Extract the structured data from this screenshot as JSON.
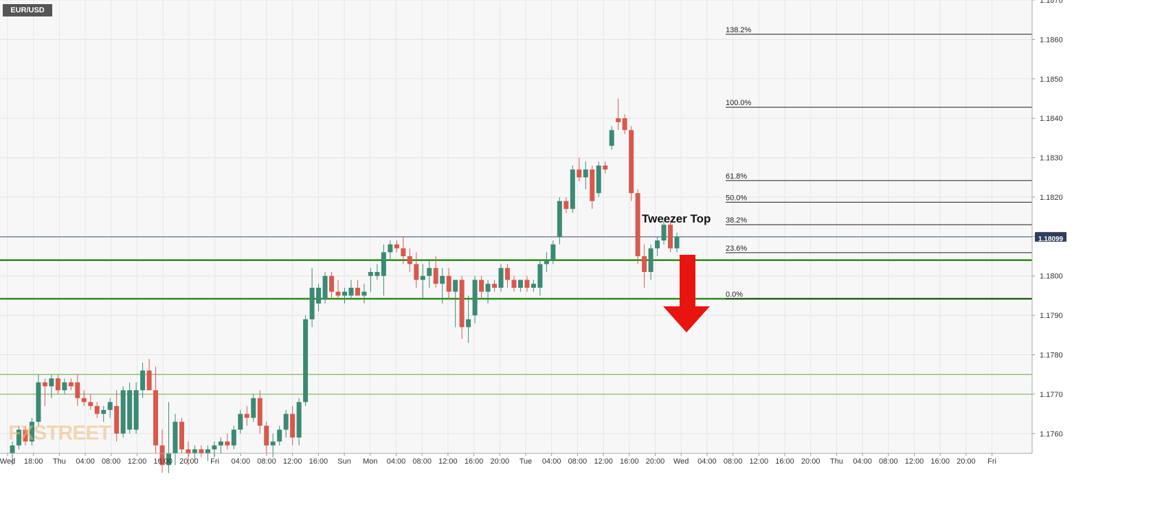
{
  "symbol_badge": "EUR/USD",
  "watermark": "FXSTREET",
  "annotation": "Tweezer Top",
  "chart_data": {
    "type": "candlestick",
    "title": "EUR/USD",
    "ylim": [
      1.1755,
      1.187
    ],
    "y_ticks": [
      "1.1760",
      "1.1770",
      "1.1780",
      "1.1790",
      "1.1800",
      "1.1810",
      "1.1820",
      "1.1830",
      "1.1840",
      "1.1850",
      "1.1860",
      "1.1870"
    ],
    "x_ticks": [
      "Wed",
      "18:00",
      "Thu",
      "04:00",
      "08:00",
      "12:00",
      "16:00",
      "20:00",
      "Fri",
      "04:00",
      "08:00",
      "12:00",
      "16:00",
      "Sun",
      "Mon",
      "04:00",
      "08:00",
      "12:00",
      "16:00",
      "20:00",
      "Tue",
      "04:00",
      "08:00",
      "12:00",
      "16:00",
      "20:00",
      "Wed",
      "04:00",
      "08:00",
      "12:00",
      "16:00",
      "20:00",
      "Thu",
      "04:00",
      "08:00",
      "12:00",
      "16:00",
      "20:00",
      "Fri"
    ],
    "current_price": "1.18099",
    "current_price_value": 1.18099,
    "horizontal_levels": [
      1.1804,
      1.17942,
      1.1775,
      1.177
    ],
    "fibonacci": [
      {
        "label": "138.2%",
        "price": 1.18613
      },
      {
        "label": "100.0%",
        "price": 1.18428
      },
      {
        "label": "61.8%",
        "price": 1.18242
      },
      {
        "label": "50.0%",
        "price": 1.18187
      },
      {
        "label": "38.2%",
        "price": 1.1813
      },
      {
        "label": "23.6%",
        "price": 1.18059
      },
      {
        "label": "0.0%",
        "price": 1.17942
      }
    ],
    "candles": [
      {
        "o": 1.1755,
        "h": 1.1758,
        "l": 1.1752,
        "c": 1.1757
      },
      {
        "o": 1.1757,
        "h": 1.1762,
        "l": 1.1756,
        "c": 1.1761
      },
      {
        "o": 1.1761,
        "h": 1.1762,
        "l": 1.1757,
        "c": 1.1758
      },
      {
        "o": 1.1758,
        "h": 1.1764,
        "l": 1.1757,
        "c": 1.1763
      },
      {
        "o": 1.1763,
        "h": 1.1775,
        "l": 1.1762,
        "c": 1.1773
      },
      {
        "o": 1.1773,
        "h": 1.1774,
        "l": 1.1767,
        "c": 1.1772
      },
      {
        "o": 1.1772,
        "h": 1.1775,
        "l": 1.1769,
        "c": 1.1774
      },
      {
        "o": 1.1774,
        "h": 1.1775,
        "l": 1.177,
        "c": 1.1771
      },
      {
        "o": 1.1771,
        "h": 1.1774,
        "l": 1.177,
        "c": 1.1773
      },
      {
        "o": 1.1773,
        "h": 1.1774,
        "l": 1.1771,
        "c": 1.1772
      },
      {
        "o": 1.1773,
        "h": 1.1775,
        "l": 1.1767,
        "c": 1.1769
      },
      {
        "o": 1.1769,
        "h": 1.1771,
        "l": 1.1767,
        "c": 1.1768
      },
      {
        "o": 1.1768,
        "h": 1.177,
        "l": 1.1766,
        "c": 1.1767
      },
      {
        "o": 1.1767,
        "h": 1.1768,
        "l": 1.1764,
        "c": 1.1765
      },
      {
        "o": 1.1765,
        "h": 1.1767,
        "l": 1.1763,
        "c": 1.1766
      },
      {
        "o": 1.1766,
        "h": 1.1769,
        "l": 1.1764,
        "c": 1.1768
      },
      {
        "o": 1.1767,
        "h": 1.1771,
        "l": 1.1758,
        "c": 1.176
      },
      {
        "o": 1.176,
        "h": 1.1772,
        "l": 1.1759,
        "c": 1.1771
      },
      {
        "o": 1.1761,
        "h": 1.1773,
        "l": 1.176,
        "c": 1.1771
      },
      {
        "o": 1.1761,
        "h": 1.1773,
        "l": 1.176,
        "c": 1.1771
      },
      {
        "o": 1.1771,
        "h": 1.1778,
        "l": 1.1769,
        "c": 1.1776
      },
      {
        "o": 1.1776,
        "h": 1.1779,
        "l": 1.1771,
        "c": 1.1771
      },
      {
        "o": 1.1771,
        "h": 1.1777,
        "l": 1.1755,
        "c": 1.1757
      },
      {
        "o": 1.1757,
        "h": 1.1761,
        "l": 1.175,
        "c": 1.1752
      },
      {
        "o": 1.1752,
        "h": 1.1768,
        "l": 1.175,
        "c": 1.1755
      },
      {
        "o": 1.1755,
        "h": 1.1765,
        "l": 1.1752,
        "c": 1.1763
      },
      {
        "o": 1.1763,
        "h": 1.1764,
        "l": 1.1755,
        "c": 1.1756
      },
      {
        "o": 1.1756,
        "h": 1.1758,
        "l": 1.1752,
        "c": 1.1755
      },
      {
        "o": 1.1755,
        "h": 1.1757,
        "l": 1.1753,
        "c": 1.1756
      },
      {
        "o": 1.1756,
        "h": 1.1757,
        "l": 1.1754,
        "c": 1.1755
      },
      {
        "o": 1.1755,
        "h": 1.1757,
        "l": 1.1753,
        "c": 1.1756
      },
      {
        "o": 1.1756,
        "h": 1.1758,
        "l": 1.1754,
        "c": 1.1757
      },
      {
        "o": 1.1757,
        "h": 1.1759,
        "l": 1.1755,
        "c": 1.1758
      },
      {
        "o": 1.1758,
        "h": 1.176,
        "l": 1.1756,
        "c": 1.1757
      },
      {
        "o": 1.1757,
        "h": 1.1762,
        "l": 1.1756,
        "c": 1.1761
      },
      {
        "o": 1.1761,
        "h": 1.1766,
        "l": 1.176,
        "c": 1.1765
      },
      {
        "o": 1.1765,
        "h": 1.1767,
        "l": 1.1762,
        "c": 1.1764
      },
      {
        "o": 1.1764,
        "h": 1.177,
        "l": 1.1763,
        "c": 1.1769
      },
      {
        "o": 1.1769,
        "h": 1.1771,
        "l": 1.176,
        "c": 1.1762
      },
      {
        "o": 1.1762,
        "h": 1.1763,
        "l": 1.1755,
        "c": 1.1757
      },
      {
        "o": 1.1757,
        "h": 1.176,
        "l": 1.1754,
        "c": 1.1758
      },
      {
        "o": 1.1758,
        "h": 1.1762,
        "l": 1.1757,
        "c": 1.1761
      },
      {
        "o": 1.1761,
        "h": 1.1766,
        "l": 1.1759,
        "c": 1.1765
      },
      {
        "o": 1.1765,
        "h": 1.1767,
        "l": 1.1757,
        "c": 1.1759
      },
      {
        "o": 1.1759,
        "h": 1.1769,
        "l": 1.1757,
        "c": 1.1768
      },
      {
        "o": 1.1768,
        "h": 1.179,
        "l": 1.1767,
        "c": 1.1789
      },
      {
        "o": 1.1789,
        "h": 1.1802,
        "l": 1.1787,
        "c": 1.1797
      },
      {
        "o": 1.1793,
        "h": 1.1798,
        "l": 1.1791,
        "c": 1.1797
      },
      {
        "o": 1.1794,
        "h": 1.1801,
        "l": 1.1793,
        "c": 1.18
      },
      {
        "o": 1.18,
        "h": 1.1801,
        "l": 1.1794,
        "c": 1.1796
      },
      {
        "o": 1.1796,
        "h": 1.1799,
        "l": 1.1794,
        "c": 1.1795
      },
      {
        "o": 1.1795,
        "h": 1.1797,
        "l": 1.1793,
        "c": 1.1796
      },
      {
        "o": 1.1795,
        "h": 1.1799,
        "l": 1.1794,
        "c": 1.1797
      },
      {
        "o": 1.1797,
        "h": 1.1799,
        "l": 1.1795,
        "c": 1.1795
      },
      {
        "o": 1.1795,
        "h": 1.1798,
        "l": 1.1793,
        "c": 1.1796
      },
      {
        "o": 1.18,
        "h": 1.1802,
        "l": 1.1796,
        "c": 1.1801
      },
      {
        "o": 1.18,
        "h": 1.1803,
        "l": 1.1799,
        "c": 1.1801
      },
      {
        "o": 1.18,
        "h": 1.1808,
        "l": 1.1795,
        "c": 1.1806
      },
      {
        "o": 1.1806,
        "h": 1.1809,
        "l": 1.1804,
        "c": 1.1808
      },
      {
        "o": 1.1808,
        "h": 1.1809,
        "l": 1.1806,
        "c": 1.1807
      },
      {
        "o": 1.1807,
        "h": 1.181,
        "l": 1.1803,
        "c": 1.1805
      },
      {
        "o": 1.1805,
        "h": 1.1807,
        "l": 1.1801,
        "c": 1.1803
      },
      {
        "o": 1.1803,
        "h": 1.1806,
        "l": 1.1797,
        "c": 1.1799
      },
      {
        "o": 1.1799,
        "h": 1.1803,
        "l": 1.1794,
        "c": 1.18
      },
      {
        "o": 1.18,
        "h": 1.1804,
        "l": 1.1797,
        "c": 1.1802
      },
      {
        "o": 1.1802,
        "h": 1.1805,
        "l": 1.1797,
        "c": 1.1798
      },
      {
        "o": 1.1798,
        "h": 1.1802,
        "l": 1.1793,
        "c": 1.18
      },
      {
        "o": 1.18,
        "h": 1.1802,
        "l": 1.1794,
        "c": 1.1796
      },
      {
        "o": 1.1796,
        "h": 1.1799,
        "l": 1.1787,
        "c": 1.1799
      },
      {
        "o": 1.1799,
        "h": 1.18,
        "l": 1.1784,
        "c": 1.1787
      },
      {
        "o": 1.1787,
        "h": 1.1795,
        "l": 1.1783,
        "c": 1.1789
      },
      {
        "o": 1.179,
        "h": 1.18,
        "l": 1.1788,
        "c": 1.1799
      },
      {
        "o": 1.1799,
        "h": 1.18,
        "l": 1.1794,
        "c": 1.1796
      },
      {
        "o": 1.1796,
        "h": 1.1799,
        "l": 1.1793,
        "c": 1.1798
      },
      {
        "o": 1.1798,
        "h": 1.1799,
        "l": 1.1796,
        "c": 1.1797
      },
      {
        "o": 1.1797,
        "h": 1.1803,
        "l": 1.1796,
        "c": 1.1802
      },
      {
        "o": 1.1802,
        "h": 1.1803,
        "l": 1.1797,
        "c": 1.1799
      },
      {
        "o": 1.1799,
        "h": 1.18,
        "l": 1.1796,
        "c": 1.1797
      },
      {
        "o": 1.1797,
        "h": 1.1799,
        "l": 1.1796,
        "c": 1.1799
      },
      {
        "o": 1.1799,
        "h": 1.18,
        "l": 1.1796,
        "c": 1.1797
      },
      {
        "o": 1.1797,
        "h": 1.1799,
        "l": 1.1796,
        "c": 1.1798
      },
      {
        "o": 1.1797,
        "h": 1.1804,
        "l": 1.1795,
        "c": 1.1803
      },
      {
        "o": 1.1803,
        "h": 1.1806,
        "l": 1.1801,
        "c": 1.1804
      },
      {
        "o": 1.1804,
        "h": 1.1809,
        "l": 1.1803,
        "c": 1.1808
      },
      {
        "o": 1.181,
        "h": 1.182,
        "l": 1.1808,
        "c": 1.1819
      },
      {
        "o": 1.1819,
        "h": 1.182,
        "l": 1.1816,
        "c": 1.1817
      },
      {
        "o": 1.1817,
        "h": 1.1828,
        "l": 1.1816,
        "c": 1.1827
      },
      {
        "o": 1.1827,
        "h": 1.183,
        "l": 1.1824,
        "c": 1.1825
      },
      {
        "o": 1.1825,
        "h": 1.1829,
        "l": 1.1822,
        "c": 1.1827
      },
      {
        "o": 1.1827,
        "h": 1.1828,
        "l": 1.1817,
        "c": 1.1819
      },
      {
        "o": 1.1821,
        "h": 1.1829,
        "l": 1.182,
        "c": 1.1828
      },
      {
        "o": 1.1828,
        "h": 1.1829,
        "l": 1.1826,
        "c": 1.1827
      },
      {
        "o": 1.1833,
        "h": 1.1838,
        "l": 1.1832,
        "c": 1.1837
      },
      {
        "o": 1.184,
        "h": 1.1845,
        "l": 1.1837,
        "c": 1.1839
      },
      {
        "o": 1.184,
        "h": 1.1841,
        "l": 1.1836,
        "c": 1.1837
      },
      {
        "o": 1.1837,
        "h": 1.1838,
        "l": 1.1819,
        "c": 1.1821
      },
      {
        "o": 1.1821,
        "h": 1.1822,
        "l": 1.1803,
        "c": 1.1805
      },
      {
        "o": 1.1805,
        "h": 1.1808,
        "l": 1.1797,
        "c": 1.1801
      },
      {
        "o": 1.1801,
        "h": 1.1808,
        "l": 1.1799,
        "c": 1.1807
      },
      {
        "o": 1.1807,
        "h": 1.181,
        "l": 1.1805,
        "c": 1.1809
      },
      {
        "o": 1.1809,
        "h": 1.1814,
        "l": 1.1808,
        "c": 1.1813
      },
      {
        "o": 1.1813,
        "h": 1.1814,
        "l": 1.1806,
        "c": 1.1807
      },
      {
        "o": 1.1807,
        "h": 1.1811,
        "l": 1.1806,
        "c": 1.181
      }
    ]
  },
  "colors": {
    "up": "#3b8a73",
    "down": "#d9584c",
    "level_thick": "#2c8a14",
    "level_thin": "#7cb55b",
    "arrow": "#e8140f",
    "price_badge_bg": "#2f3f5b",
    "badge_bg": "#555555"
  }
}
